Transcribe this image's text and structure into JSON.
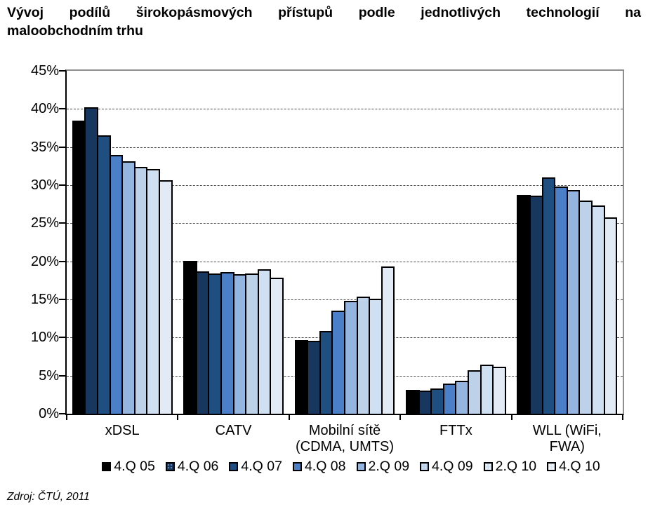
{
  "title": {
    "line1": "Vývoj podílů širokopásmových přístupů podle jednotlivých technologií na",
    "line2": "maloobchodním trhu"
  },
  "source": "Zdroj: ČTÚ, 2011",
  "chart_data": {
    "type": "bar",
    "title": "Vývoj podílů širokopásmových přístupů podle jednotlivých technologií na maloobchodním trhu",
    "categories": [
      "xDSL",
      "CATV",
      "Mobilní sítě (CDMA, UMTS)",
      "FTTx",
      "WLL (WiFi, FWA)"
    ],
    "category_label_lines": [
      [
        "xDSL"
      ],
      [
        "CATV"
      ],
      [
        "Mobilní sítě",
        "(CDMA, UMTS)"
      ],
      [
        "FTTx"
      ],
      [
        "WLL (WiFi,",
        "FWA)"
      ]
    ],
    "series": [
      {
        "name": "4.Q 05",
        "color": "#000000",
        "pattern": "none",
        "values": [
          38.5,
          20.1,
          9.7,
          3.1,
          28.7
        ]
      },
      {
        "name": "4.Q 06",
        "color": "#17375E",
        "pattern": "dots-light",
        "values": [
          40.2,
          18.7,
          9.6,
          3.0,
          28.6
        ]
      },
      {
        "name": "4.Q 07",
        "color": "#1F4E80",
        "pattern": "none",
        "values": [
          36.5,
          18.4,
          10.9,
          3.3,
          31.0
        ]
      },
      {
        "name": "4.Q 08",
        "color": "#4B80C8",
        "pattern": "none",
        "values": [
          34.0,
          18.6,
          13.5,
          4.0,
          29.8
        ]
      },
      {
        "name": "2.Q 09",
        "color": "#93B5DF",
        "pattern": "none",
        "values": [
          33.1,
          18.3,
          14.8,
          4.3,
          29.4
        ]
      },
      {
        "name": "4.Q 09",
        "color": "#BDD2E9",
        "pattern": "dots-faint",
        "values": [
          32.4,
          18.4,
          15.4,
          5.7,
          28.0
        ]
      },
      {
        "name": "2.Q 10",
        "color": "#CFE0F3",
        "pattern": "dots-white",
        "values": [
          32.1,
          19.0,
          15.1,
          6.4,
          27.3
        ]
      },
      {
        "name": "4.Q 10",
        "color": "#E1EAF5",
        "pattern": "dots-white",
        "values": [
          30.6,
          17.9,
          19.3,
          6.2,
          25.8
        ]
      }
    ],
    "ylim": [
      0,
      45
    ],
    "ytick_step": 5,
    "ytick_labels": [
      "45%",
      "40%",
      "35%",
      "30%",
      "25%",
      "20%",
      "15%",
      "10%",
      "5%",
      "0%"
    ],
    "grid": "horizontal-dashed",
    "legend_position": "bottom",
    "bar_border_color": "#000000"
  }
}
